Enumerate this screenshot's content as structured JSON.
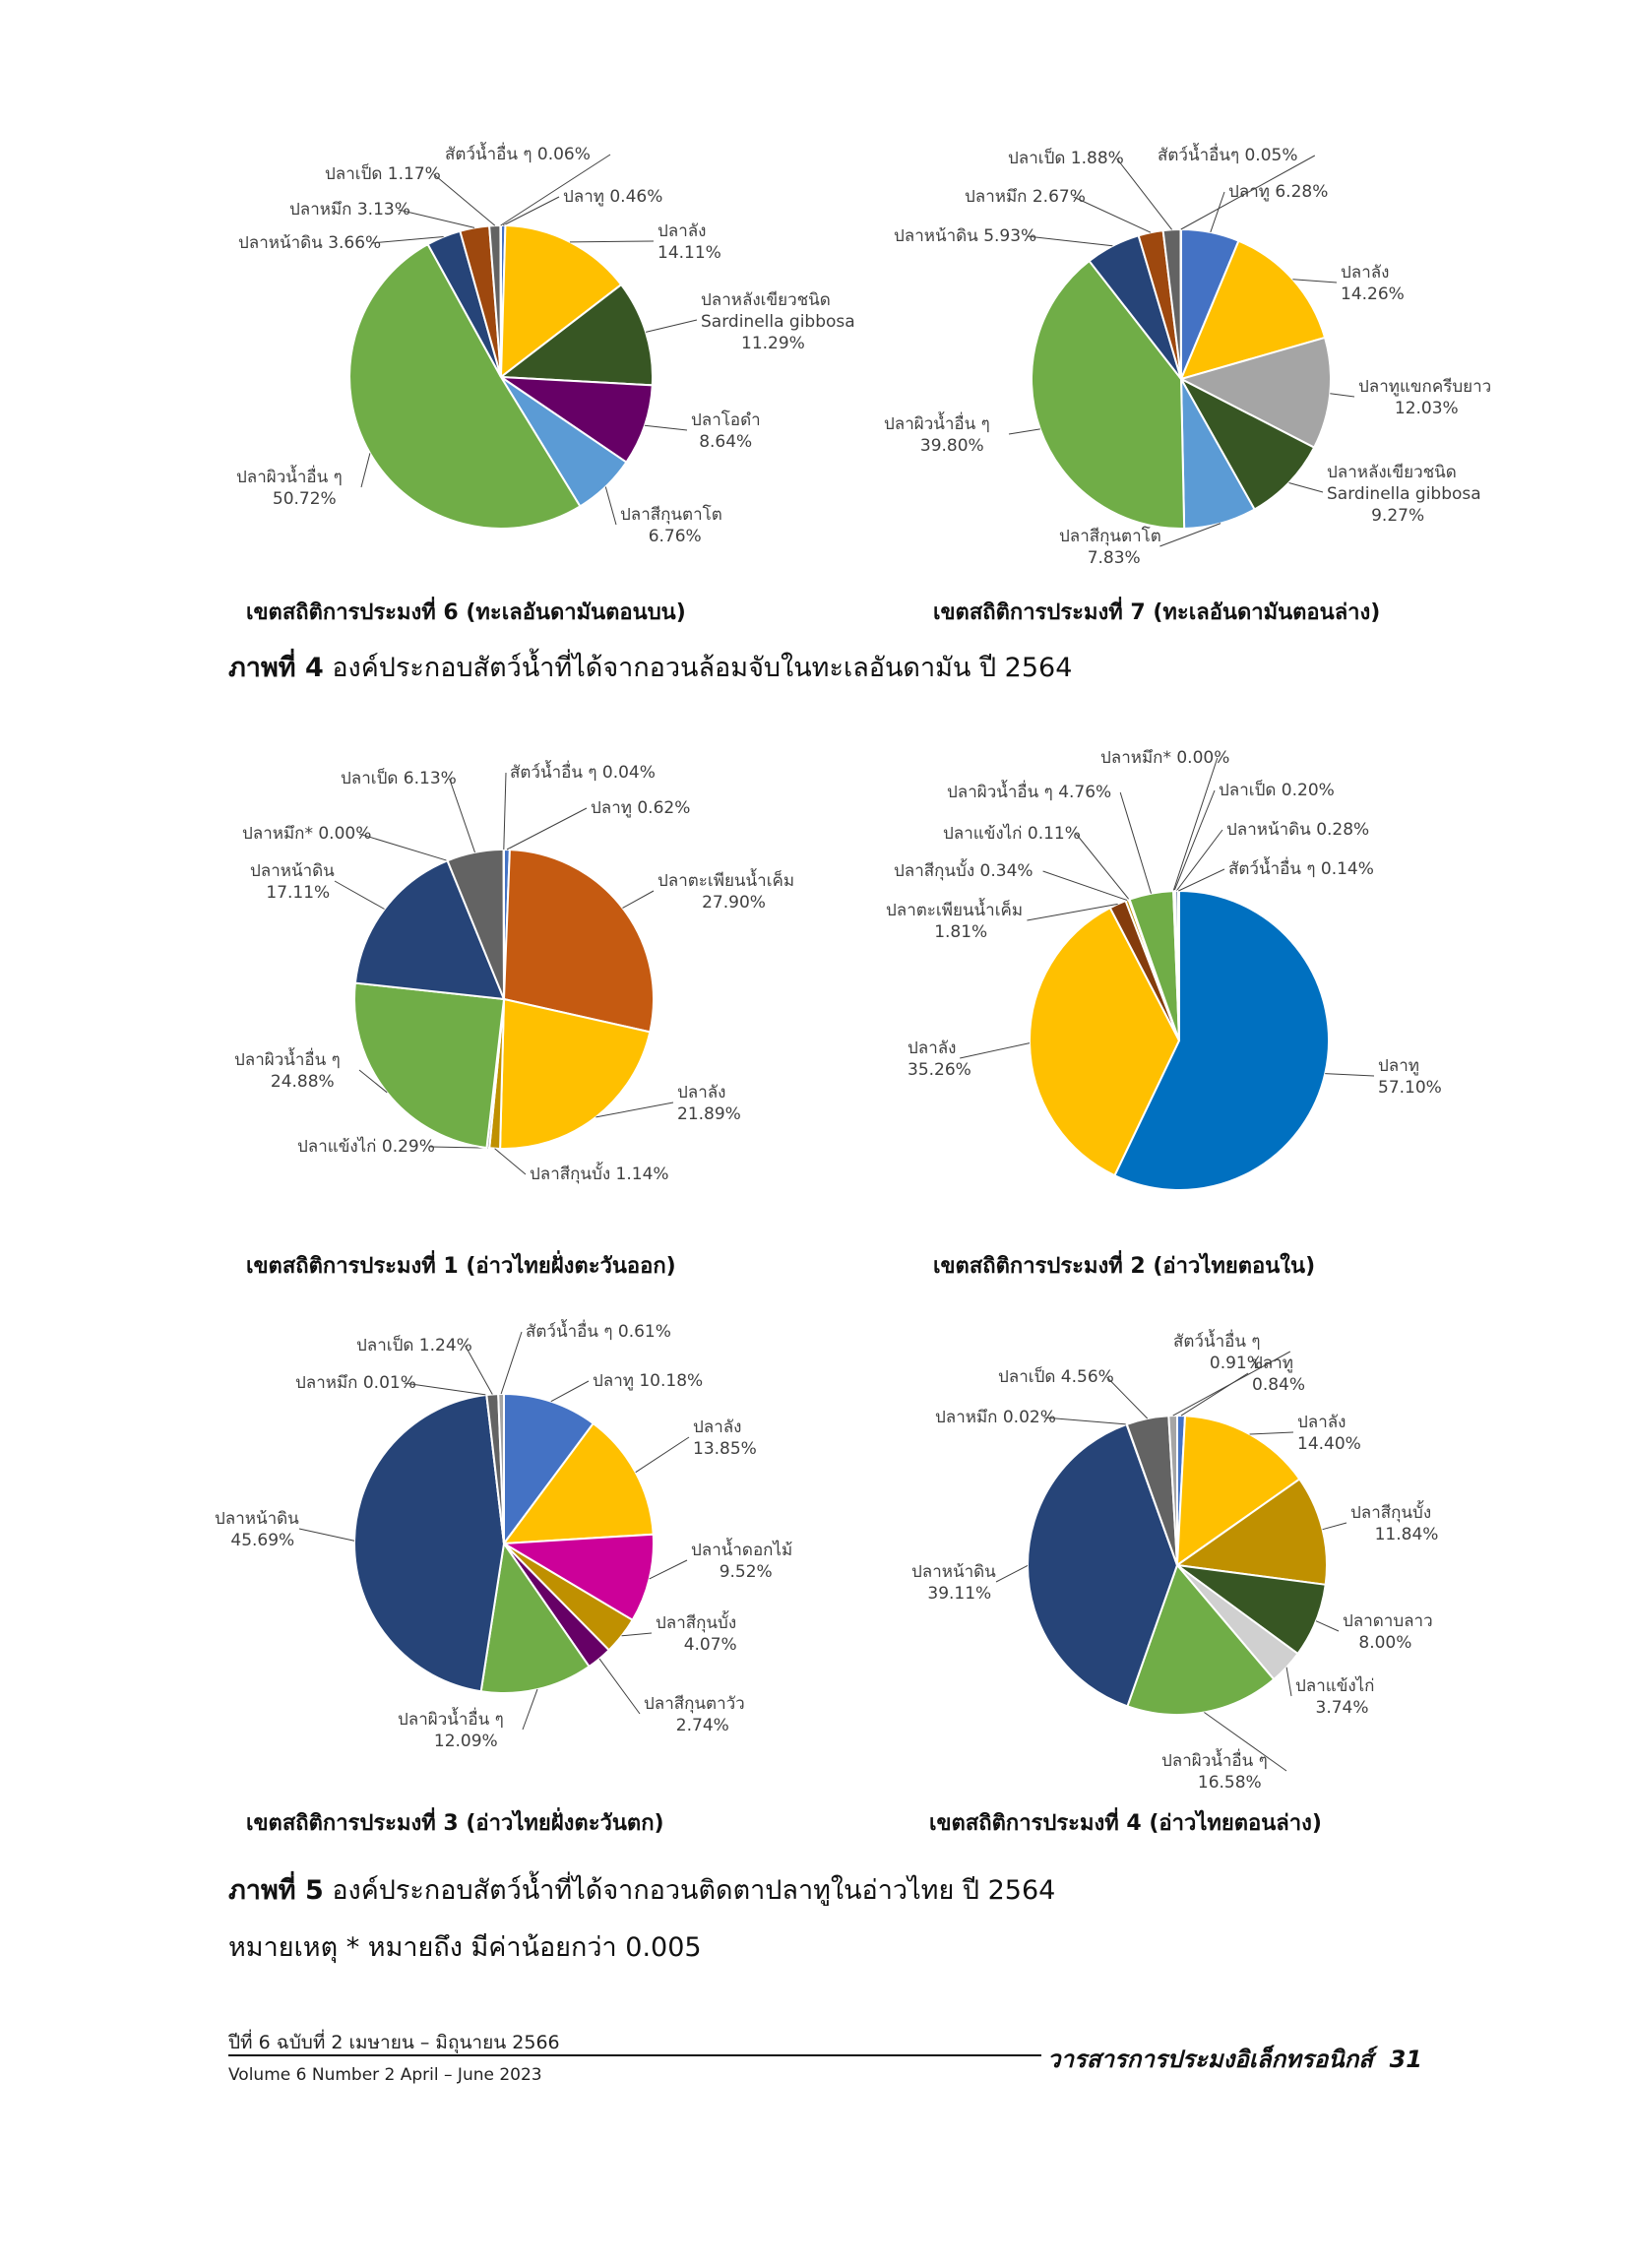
{
  "colors": {
    "blue": "#4472c4",
    "yellow": "#ffc000",
    "darkgreen": "#375623",
    "purple": "#660066",
    "lightblue": "#5b9bd5",
    "green": "#70ad47",
    "navy": "#264478",
    "rust": "#9e480e",
    "gray": "#636363",
    "silver": "#a5a5a5",
    "orange": "#c55a11",
    "royal": "#0070c0",
    "brown": "#843c0c",
    "magenta": "#cc0099",
    "olive": "#bf9000",
    "lightgray": "#d0d0d0"
  },
  "chart_data": [
    {
      "type": "pie",
      "id": "zone6",
      "title": "เขตสถิติการประมงที่ 6 (ทะเลอันดามันตอนบน)",
      "series": [
        {
          "name": "ปลาทู",
          "label": "ปลาทู 0.46%",
          "value": 0.46,
          "color": "blue"
        },
        {
          "name": "ปลาลัง",
          "label": "ปลาลัง\n14.11%",
          "value": 14.11,
          "color": "yellow"
        },
        {
          "name": "ปลาหลังเขียวชนิด Sardinella gibbosa",
          "label": "ปลาหลังเขียวชนิด\nSardinella gibbosa\n11.29%",
          "value": 11.29,
          "color": "darkgreen"
        },
        {
          "name": "ปลาโอดำ",
          "label": "ปลาโอดำ\n8.64%",
          "value": 8.64,
          "color": "purple"
        },
        {
          "name": "ปลาสีกุนตาโต",
          "label": "ปลาสีกุนตาโต\n6.76%",
          "value": 6.76,
          "color": "lightblue"
        },
        {
          "name": "ปลาผิวน้ำอื่น ๆ",
          "label": "ปลาผิวน้ำอื่น ๆ\n50.72%",
          "value": 50.72,
          "color": "green"
        },
        {
          "name": "ปลาหน้าดิน",
          "label": "ปลาหน้าดิน 3.66%",
          "value": 3.66,
          "color": "navy"
        },
        {
          "name": "ปลาหมึก",
          "label": "ปลาหมึก 3.13%",
          "value": 3.13,
          "color": "rust"
        },
        {
          "name": "ปลาเป็ด",
          "label": "ปลาเป็ด 1.17%",
          "value": 1.17,
          "color": "gray"
        },
        {
          "name": "สัตว์น้ำอื่น ๆ",
          "label": "สัตว์น้ำอื่น ๆ 0.06%",
          "value": 0.06,
          "color": "silver"
        }
      ]
    },
    {
      "type": "pie",
      "id": "zone7",
      "title": "เขตสถิติการประมงที่ 7 (ทะเลอันดามันตอนล่าง)",
      "series": [
        {
          "name": "ปลาทู",
          "label": "ปลาทู 6.28%",
          "value": 6.28,
          "color": "blue"
        },
        {
          "name": "ปลาลัง",
          "label": "ปลาลัง\n14.26%",
          "value": 14.26,
          "color": "yellow"
        },
        {
          "name": "ปลาทูแขกครีบยาว",
          "label": "ปลาทูแขกครีบยาว\n12.03%",
          "value": 12.03,
          "color": "silver"
        },
        {
          "name": "ปลาหลังเขียวชนิด Sardinella gibbosa",
          "label": "ปลาหลังเขียวชนิด\nSardinella gibbosa\n9.27%",
          "value": 9.27,
          "color": "darkgreen"
        },
        {
          "name": "ปลาสีกุนตาโต",
          "label": "ปลาสีกุนตาโต\n7.83%",
          "value": 7.83,
          "color": "lightblue"
        },
        {
          "name": "ปลาผิวน้ำอื่น ๆ",
          "label": "ปลาผิวน้ำอื่น ๆ\n39.80%",
          "value": 39.8,
          "color": "green"
        },
        {
          "name": "ปลาหน้าดิน",
          "label": "ปลาหน้าดิน 5.93%",
          "value": 5.93,
          "color": "navy"
        },
        {
          "name": "ปลาหมึก",
          "label": "ปลาหมึก 2.67%",
          "value": 2.67,
          "color": "rust"
        },
        {
          "name": "ปลาเป็ด",
          "label": "ปลาเป็ด 1.88%",
          "value": 1.88,
          "color": "gray"
        },
        {
          "name": "สัตว์น้ำอื่นๆ",
          "label": "สัตว์น้ำอื่นๆ 0.05%",
          "value": 0.05,
          "color": "silver"
        }
      ]
    },
    {
      "type": "pie",
      "id": "zone1",
      "title": "เขตสถิติการประมงที่ 1 (อ่าวไทยฝั่งตะวันออก)",
      "series": [
        {
          "name": "ปลาทู",
          "label": "ปลาทู 0.62%",
          "value": 0.62,
          "color": "blue"
        },
        {
          "name": "ปลาตะเพียนน้ำเค็ม",
          "label": "ปลาตะเพียนน้ำเค็ม\n27.90%",
          "value": 27.9,
          "color": "orange"
        },
        {
          "name": "ปลาลัง",
          "label": "ปลาลัง\n21.89%",
          "value": 21.89,
          "color": "yellow"
        },
        {
          "name": "ปลาสีกุนบั้ง",
          "label": "ปลาสีกุนบั้ง 1.14%",
          "value": 1.14,
          "color": "olive"
        },
        {
          "name": "ปลาแข้งไก่",
          "label": "ปลาแข้งไก่ 0.29%",
          "value": 0.29,
          "color": "silver"
        },
        {
          "name": "ปลาผิวน้ำอื่น ๆ",
          "label": "ปลาผิวน้ำอื่น ๆ\n24.88%",
          "value": 24.88,
          "color": "green"
        },
        {
          "name": "ปลาหน้าดิน",
          "label": "ปลาหน้าดิน\n17.11%",
          "value": 17.11,
          "color": "navy"
        },
        {
          "name": "ปลาหมึก*",
          "label": "ปลาหมึก* 0.00%",
          "value": 0.0,
          "color": "rust"
        },
        {
          "name": "ปลาเป็ด",
          "label": "ปลาเป็ด 6.13%",
          "value": 6.13,
          "color": "gray"
        },
        {
          "name": "สัตว์น้ำอื่น ๆ",
          "label": "สัตว์น้ำอื่น ๆ 0.04%",
          "value": 0.04,
          "color": "lightgray"
        }
      ]
    },
    {
      "type": "pie",
      "id": "zone2",
      "title": "เขตสถิติการประมงที่ 2 (อ่าวไทยตอนใน)",
      "series": [
        {
          "name": "ปลาทู",
          "label": "ปลาทู\n57.10%",
          "value": 57.1,
          "color": "royal"
        },
        {
          "name": "ปลาลัง",
          "label": "ปลาลัง\n35.26%",
          "value": 35.26,
          "color": "yellow"
        },
        {
          "name": "ปลาตะเพียนน้ำเค็ม",
          "label": "ปลาตะเพียนน้ำเค็ม\n1.81%",
          "value": 1.81,
          "color": "brown"
        },
        {
          "name": "ปลาสีกุนบั้ง",
          "label": "ปลาสีกุนบั้ง 0.34%",
          "value": 0.34,
          "color": "olive"
        },
        {
          "name": "ปลาแข้งไก่",
          "label": "ปลาแข้งไก่ 0.11%",
          "value": 0.11,
          "color": "silver"
        },
        {
          "name": "ปลาผิวน้ำอื่น ๆ",
          "label": "ปลาผิวน้ำอื่น ๆ 4.76%",
          "value": 4.76,
          "color": "green"
        },
        {
          "name": "ปลาหมึก*",
          "label": "ปลาหมึก* 0.00%",
          "value": 0.0,
          "color": "rust"
        },
        {
          "name": "ปลาเป็ด",
          "label": "ปลาเป็ด 0.20%",
          "value": 0.2,
          "color": "gray"
        },
        {
          "name": "ปลาหน้าดิน",
          "label": "ปลาหน้าดิน 0.28%",
          "value": 0.28,
          "color": "navy"
        },
        {
          "name": "สัตว์น้ำอื่น ๆ",
          "label": "สัตว์น้ำอื่น ๆ 0.14%",
          "value": 0.14,
          "color": "lightgray"
        }
      ]
    },
    {
      "type": "pie",
      "id": "zone3",
      "title": "เขตสถิติการประมงที่ 3 (อ่าวไทยฝั่งตะวันตก)",
      "series": [
        {
          "name": "ปลาทู",
          "label": "ปลาทู 10.18%",
          "value": 10.18,
          "color": "blue"
        },
        {
          "name": "ปลาลัง",
          "label": "ปลาลัง\n13.85%",
          "value": 13.85,
          "color": "yellow"
        },
        {
          "name": "ปลาน้ำดอกไม้",
          "label": "ปลาน้ำดอกไม้\n9.52%",
          "value": 9.52,
          "color": "magenta"
        },
        {
          "name": "ปลาสีกุนบั้ง",
          "label": "ปลาสีกุนบั้ง\n4.07%",
          "value": 4.07,
          "color": "olive"
        },
        {
          "name": "ปลาสีกุนตาวัว",
          "label": "ปลาสีกุนตาวัว\n2.74%",
          "value": 2.74,
          "color": "purple"
        },
        {
          "name": "ปลาผิวน้ำอื่น ๆ",
          "label": "ปลาผิวน้ำอื่น ๆ\n12.09%",
          "value": 12.09,
          "color": "green"
        },
        {
          "name": "ปลาหน้าดิน",
          "label": "ปลาหน้าดิน\n45.69%",
          "value": 45.69,
          "color": "navy"
        },
        {
          "name": "ปลาหมึก",
          "label": "ปลาหมึก 0.01%",
          "value": 0.01,
          "color": "rust"
        },
        {
          "name": "ปลาเป็ด",
          "label": "ปลาเป็ด 1.24%",
          "value": 1.24,
          "color": "gray"
        },
        {
          "name": "สัตว์น้ำอื่น ๆ",
          "label": "สัตว์น้ำอื่น ๆ 0.61%",
          "value": 0.61,
          "color": "silver"
        }
      ]
    },
    {
      "type": "pie",
      "id": "zone4",
      "title": "เขตสถิติการประมงที่ 4 (อ่าวไทยตอนล่าง)",
      "series": [
        {
          "name": "ปลาทู",
          "label": "ปลาทู\n0.84%",
          "value": 0.84,
          "color": "blue"
        },
        {
          "name": "ปลาลัง",
          "label": "ปลาลัง\n14.40%",
          "value": 14.4,
          "color": "yellow"
        },
        {
          "name": "ปลาสีกุนบั้ง",
          "label": "ปลาสีกุนบั้ง\n11.84%",
          "value": 11.84,
          "color": "olive"
        },
        {
          "name": "ปลาดาบลาว",
          "label": "ปลาดาบลาว\n8.00%",
          "value": 8.0,
          "color": "darkgreen"
        },
        {
          "name": "ปลาแข้งไก่",
          "label": "ปลาแข้งไก่\n3.74%",
          "value": 3.74,
          "color": "lightgray"
        },
        {
          "name": "ปลาผิวน้ำอื่น ๆ",
          "label": "ปลาผิวน้ำอื่น ๆ\n16.58%",
          "value": 16.58,
          "color": "green"
        },
        {
          "name": "ปลาหน้าดิน",
          "label": "ปลาหน้าดิน\n39.11%",
          "value": 39.11,
          "color": "navy"
        },
        {
          "name": "ปลาหมึก",
          "label": "ปลาหมึก 0.02%",
          "value": 0.02,
          "color": "rust"
        },
        {
          "name": "ปลาเป็ด",
          "label": "ปลาเป็ด 4.56%",
          "value": 4.56,
          "color": "gray"
        },
        {
          "name": "สัตว์น้ำอื่น ๆ",
          "label": "สัตว์น้ำอื่น ๆ\n0.91%",
          "value": 0.91,
          "color": "silver"
        }
      ]
    }
  ],
  "figures": {
    "fig4": {
      "prefix": "ภาพที่ 4",
      "text": " องค์ประกอบสัตว์น้ำที่ได้จากอวนล้อมจับในทะเลอันดามัน ปี 2564"
    },
    "fig5": {
      "prefix": "ภาพที่ 5",
      "text": " องค์ประกอบสัตว์น้ำที่ได้จากอวนติดตาปลาทูในอ่าวไทย ปี 2564"
    },
    "note": "หมายเหตุ  * หมายถึง มีค่าน้อยกว่า 0.005"
  },
  "footer": {
    "issue_th": "ปีที่ 6 ฉบับที่ 2 เมษายน – มิถุนายน 2566",
    "issue_en": "Volume 6 Number 2 April – June 2023",
    "journal": "วารสารการประมงอิเล็กทรอนิกส์",
    "page": "31"
  }
}
